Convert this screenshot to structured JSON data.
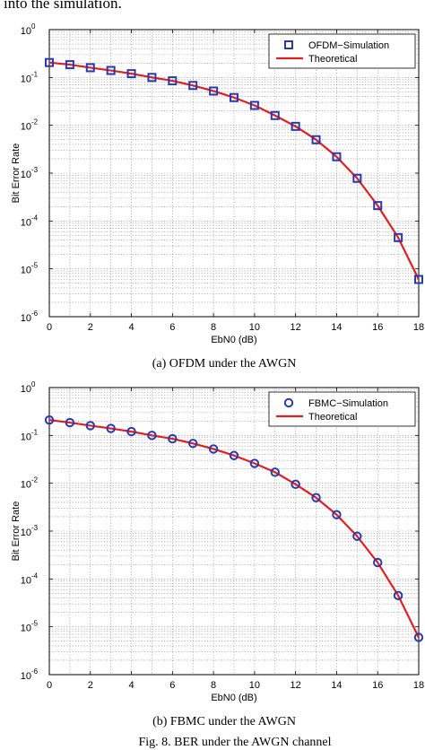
{
  "header_fragment": "into the simulation.",
  "figure_caption": "Fig. 8.   BER under the AWGN channel",
  "colors": {
    "marker": "#2a3aa8",
    "theory": "#e02020",
    "grid": "#8a8a8a",
    "axis": "#000000"
  },
  "chart_data": [
    {
      "type": "line",
      "caption": "(a)  OFDM under the AWGN",
      "xlabel": "EbN0 (dB)",
      "ylabel": "Bit Error Rate",
      "xlim": [
        0,
        18
      ],
      "ylim": [
        1e-06,
        1
      ],
      "yscale": "log",
      "grid": true,
      "legend_position": "top-right",
      "x_ticks": [
        "0",
        "2",
        "4",
        "6",
        "8",
        "10",
        "12",
        "14",
        "16",
        "18"
      ],
      "y_ticks": [
        {
          "base": "10",
          "exp": "0"
        },
        {
          "base": "10",
          "exp": "-1"
        },
        {
          "base": "10",
          "exp": "-2"
        },
        {
          "base": "10",
          "exp": "-3"
        },
        {
          "base": "10",
          "exp": "-4"
        },
        {
          "base": "10",
          "exp": "-5"
        },
        {
          "base": "10",
          "exp": "-6"
        }
      ],
      "x": [
        0,
        1,
        2,
        3,
        4,
        5,
        6,
        7,
        8,
        9,
        10,
        11,
        12,
        13,
        14,
        15,
        16,
        17,
        18
      ],
      "series": [
        {
          "name": "OFDM−Simulation",
          "marker": "square",
          "values": [
            0.205,
            0.185,
            0.16,
            0.14,
            0.12,
            0.1,
            0.085,
            0.068,
            0.052,
            0.038,
            0.026,
            0.016,
            0.0095,
            0.005,
            0.0022,
            0.00078,
            0.00021,
            4.5e-05,
            6e-06
          ]
        },
        {
          "name": "Theoretical",
          "marker": "line",
          "values": [
            0.205,
            0.185,
            0.16,
            0.14,
            0.12,
            0.1,
            0.085,
            0.068,
            0.052,
            0.038,
            0.026,
            0.016,
            0.0095,
            0.005,
            0.0022,
            0.00078,
            0.00021,
            4.5e-05,
            6e-06
          ]
        }
      ]
    },
    {
      "type": "line",
      "caption": "(b)  FBMC under the AWGN",
      "xlabel": "EbN0 (dB)",
      "ylabel": "Bit Error Rate",
      "xlim": [
        0,
        18
      ],
      "ylim": [
        1e-06,
        1
      ],
      "yscale": "log",
      "grid": true,
      "legend_position": "top-right",
      "x_ticks": [
        "0",
        "2",
        "4",
        "6",
        "8",
        "10",
        "12",
        "14",
        "16",
        "18"
      ],
      "y_ticks": [
        {
          "base": "10",
          "exp": "0"
        },
        {
          "base": "10",
          "exp": "-1"
        },
        {
          "base": "10",
          "exp": "-2"
        },
        {
          "base": "10",
          "exp": "-3"
        },
        {
          "base": "10",
          "exp": "-4"
        },
        {
          "base": "10",
          "exp": "-5"
        },
        {
          "base": "10",
          "exp": "-6"
        }
      ],
      "x": [
        0,
        1,
        2,
        3,
        4,
        5,
        6,
        7,
        8,
        9,
        10,
        11,
        12,
        13,
        14,
        15,
        16,
        17,
        18
      ],
      "series": [
        {
          "name": "FBMC−Simulation",
          "marker": "circle",
          "values": [
            0.21,
            0.185,
            0.16,
            0.14,
            0.12,
            0.1,
            0.085,
            0.068,
            0.052,
            0.038,
            0.026,
            0.017,
            0.0095,
            0.005,
            0.0022,
            0.00078,
            0.00022,
            4.5e-05,
            6e-06
          ]
        },
        {
          "name": "Theoretical",
          "marker": "line",
          "values": [
            0.21,
            0.185,
            0.16,
            0.14,
            0.12,
            0.1,
            0.085,
            0.068,
            0.052,
            0.038,
            0.026,
            0.017,
            0.0095,
            0.005,
            0.0022,
            0.00078,
            0.00022,
            4.5e-05,
            6e-06
          ]
        }
      ]
    }
  ]
}
